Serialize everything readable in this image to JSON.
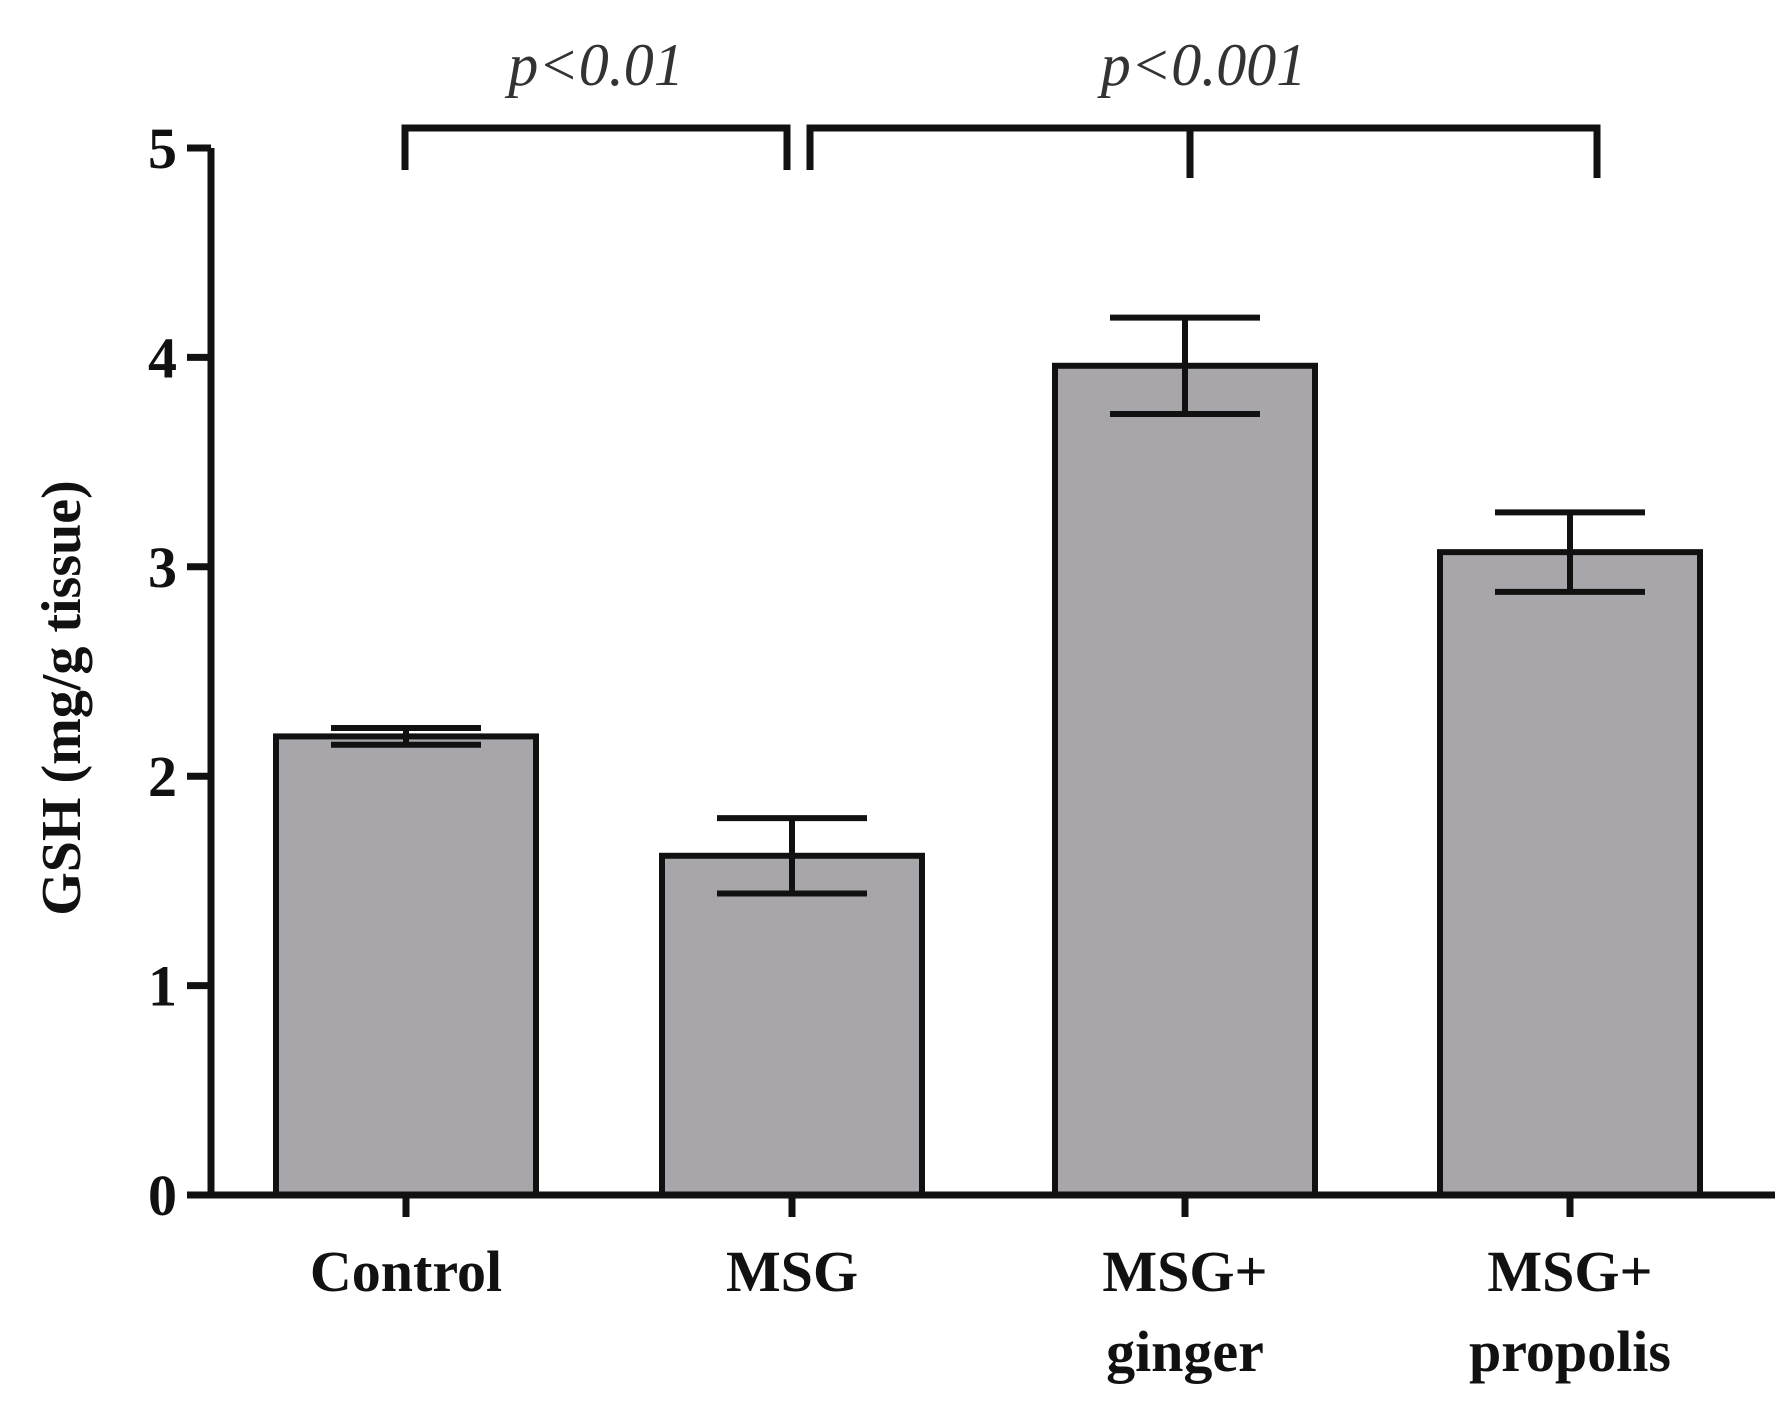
{
  "chart_data": {
    "type": "bar",
    "title": "",
    "xlabel": "",
    "ylabel": "GSH (mg/g tissue)",
    "ylim": [
      0,
      5
    ],
    "yticks": [
      "0",
      "1",
      "2",
      "3",
      "4",
      "5"
    ],
    "grid": false,
    "categories": [
      {
        "lines": [
          "Control"
        ]
      },
      {
        "lines": [
          "MSG"
        ]
      },
      {
        "lines": [
          "MSG+",
          "ginger"
        ]
      },
      {
        "lines": [
          "MSG+",
          "propolis"
        ]
      }
    ],
    "values": [
      2.19,
      1.62,
      3.96,
      3.07
    ],
    "errors": [
      0.04,
      0.18,
      0.23,
      0.19
    ],
    "bar_color": "#a8a6ab",
    "edge_color": "#111111",
    "significance": [
      {
        "label": "p<0.01",
        "from": 0,
        "to": [
          1
        ]
      },
      {
        "label": "p<0.001",
        "from": 1,
        "to": [
          2,
          3
        ]
      }
    ]
  }
}
